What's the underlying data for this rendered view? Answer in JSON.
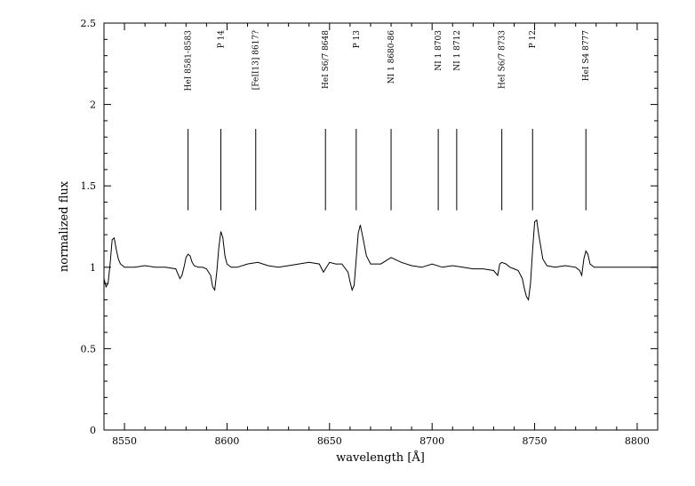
{
  "chart_data": {
    "type": "line",
    "title": "",
    "xlabel": "wavelength [Å]",
    "ylabel": "normalized flux",
    "xlim": [
      8540,
      8810
    ],
    "ylim": [
      0,
      2.5
    ],
    "xticks": [
      8550,
      8600,
      8650,
      8700,
      8750,
      8800
    ],
    "xtick_labels": [
      "8550",
      "8600",
      "8650",
      "8700",
      "8750",
      "8800"
    ],
    "yticks": [
      0,
      0.5,
      1,
      1.5,
      2,
      2.5
    ],
    "ytick_labels": [
      "0",
      "0.5",
      "1",
      "1.5",
      "2",
      "2.5"
    ],
    "grid": false,
    "series": [
      {
        "x": [
          8540,
          8541,
          8542,
          8543,
          8544,
          8545,
          8546,
          8547,
          8548,
          8550,
          8555,
          8560,
          8565,
          8570,
          8575,
          8577,
          8578,
          8579,
          8580,
          8581,
          8582,
          8583,
          8584,
          8586,
          8588,
          8590,
          8592,
          8593,
          8594,
          8595,
          8596,
          8597,
          8598,
          8599,
          8600,
          8602,
          8605,
          8610,
          8615,
          8620,
          8625,
          8630,
          8635,
          8640,
          8645,
          8647,
          8648,
          8650,
          8653,
          8656,
          8659,
          8660,
          8661,
          8662,
          8663,
          8664,
          8665,
          8666,
          8668,
          8670,
          8675,
          8680,
          8685,
          8690,
          8695,
          8700,
          8705,
          8710,
          8715,
          8720,
          8725,
          8730,
          8732,
          8733,
          8734,
          8736,
          8738,
          8740,
          8742,
          8744,
          8745,
          8746,
          8747,
          8748,
          8749,
          8750,
          8751,
          8752,
          8754,
          8756,
          8760,
          8765,
          8770,
          8772,
          8773,
          8774,
          8775,
          8776,
          8777,
          8779,
          8782,
          8790,
          8800,
          8810
        ],
        "y": [
          0.93,
          0.88,
          0.9,
          1.02,
          1.17,
          1.18,
          1.11,
          1.05,
          1.02,
          1.0,
          1.0,
          1.01,
          1.0,
          1.0,
          0.99,
          0.93,
          0.95,
          1.0,
          1.06,
          1.08,
          1.07,
          1.03,
          1.01,
          1.0,
          1.0,
          0.99,
          0.95,
          0.88,
          0.86,
          0.97,
          1.12,
          1.22,
          1.18,
          1.07,
          1.02,
          1.0,
          1.0,
          1.02,
          1.03,
          1.01,
          1.0,
          1.01,
          1.02,
          1.03,
          1.02,
          0.97,
          0.99,
          1.03,
          1.02,
          1.02,
          0.97,
          0.91,
          0.86,
          0.89,
          1.05,
          1.21,
          1.26,
          1.2,
          1.07,
          1.02,
          1.02,
          1.06,
          1.03,
          1.01,
          1.0,
          1.02,
          1.0,
          1.01,
          1.0,
          0.99,
          0.99,
          0.98,
          0.95,
          1.02,
          1.03,
          1.02,
          1.0,
          0.99,
          0.98,
          0.93,
          0.87,
          0.82,
          0.8,
          0.9,
          1.1,
          1.28,
          1.29,
          1.2,
          1.05,
          1.01,
          1.0,
          1.01,
          1.0,
          0.98,
          0.95,
          1.05,
          1.1,
          1.08,
          1.02,
          1.0,
          1.0,
          1.0,
          1.0,
          1.0
        ]
      }
    ],
    "line_markers": {
      "y_range": [
        1.35,
        1.85
      ],
      "items": [
        {
          "wavelength": 8581,
          "label": "HeI 8581-8583"
        },
        {
          "wavelength": 8597,
          "label": "P 14"
        },
        {
          "wavelength": 8614,
          "label": "[FeII13] 8617?"
        },
        {
          "wavelength": 8648,
          "label": "HeI S6/7 8648"
        },
        {
          "wavelength": 8663,
          "label": "P 13"
        },
        {
          "wavelength": 8680,
          "label": "NI 1 8680-86"
        },
        {
          "wavelength": 8703,
          "label": "NI 1 8703"
        },
        {
          "wavelength": 8712,
          "label": "NI 1 8712"
        },
        {
          "wavelength": 8734,
          "label": "HeI S6/7 8733"
        },
        {
          "wavelength": 8749,
          "label": "P 12"
        },
        {
          "wavelength": 8775,
          "label": "HeI S4 8777"
        }
      ]
    }
  }
}
